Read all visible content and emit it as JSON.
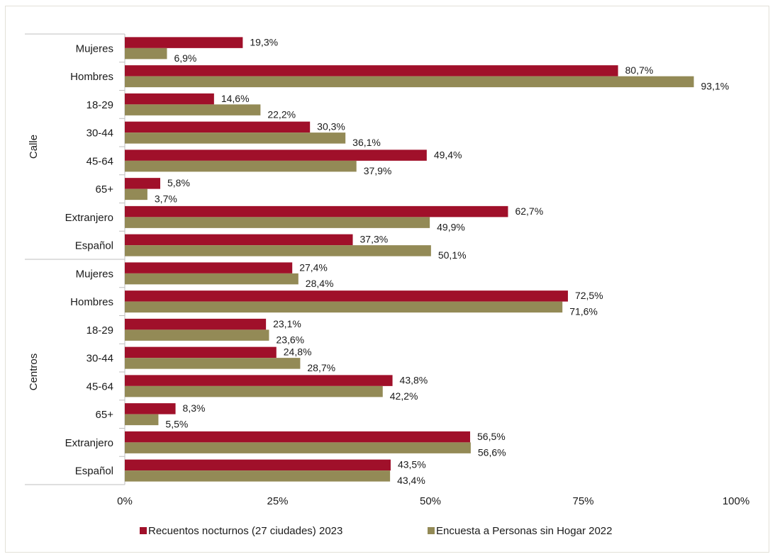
{
  "chart_data": {
    "type": "bar",
    "orientation": "horizontal",
    "groups": [
      {
        "name": "Calle",
        "categories": [
          "Mujeres",
          "Hombres",
          "18-29",
          "30-44",
          "45-64",
          "65+",
          "Extranjero",
          "Español"
        ]
      },
      {
        "name": "Centros",
        "categories": [
          "Mujeres",
          "Hombres",
          "18-29",
          "30-44",
          "45-64",
          "65+",
          "Extranjero",
          "Español"
        ]
      }
    ],
    "series": [
      {
        "name": "Recuentos nocturnos (27 ciudades) 2023",
        "color": "#a0102a",
        "values": [
          19.3,
          80.7,
          14.6,
          30.3,
          49.4,
          5.8,
          62.7,
          37.3,
          27.4,
          72.5,
          23.1,
          24.8,
          43.8,
          8.3,
          56.5,
          43.5
        ],
        "labels": [
          "19,3%",
          "80,7%",
          "14,6%",
          "30,3%",
          "49,4%",
          "5,8%",
          "62,7%",
          "37,3%",
          "27,4%",
          "72,5%",
          "23,1%",
          "24,8%",
          "43,8%",
          "8,3%",
          "56,5%",
          "43,5%"
        ]
      },
      {
        "name": "Encuesta a Personas sin Hogar 2022",
        "color": "#938a56",
        "values": [
          6.9,
          93.1,
          22.2,
          36.1,
          37.9,
          3.7,
          49.9,
          50.1,
          28.4,
          71.6,
          23.6,
          28.7,
          42.2,
          5.5,
          56.6,
          43.4
        ],
        "labels": [
          "6,9%",
          "93,1%",
          "22,2%",
          "36,1%",
          "37,9%",
          "3,7%",
          "49,9%",
          "50,1%",
          "28,4%",
          "71,6%",
          "23,6%",
          "28,7%",
          "42,2%",
          "5,5%",
          "56,6%",
          "43,4%"
        ]
      }
    ],
    "xlim": [
      0,
      100
    ],
    "xticks": [
      0,
      25,
      50,
      75,
      100
    ],
    "xtick_labels": [
      "0%",
      "25%",
      "50%",
      "75%",
      "100%"
    ],
    "legend_position": "bottom",
    "grid": false
  }
}
